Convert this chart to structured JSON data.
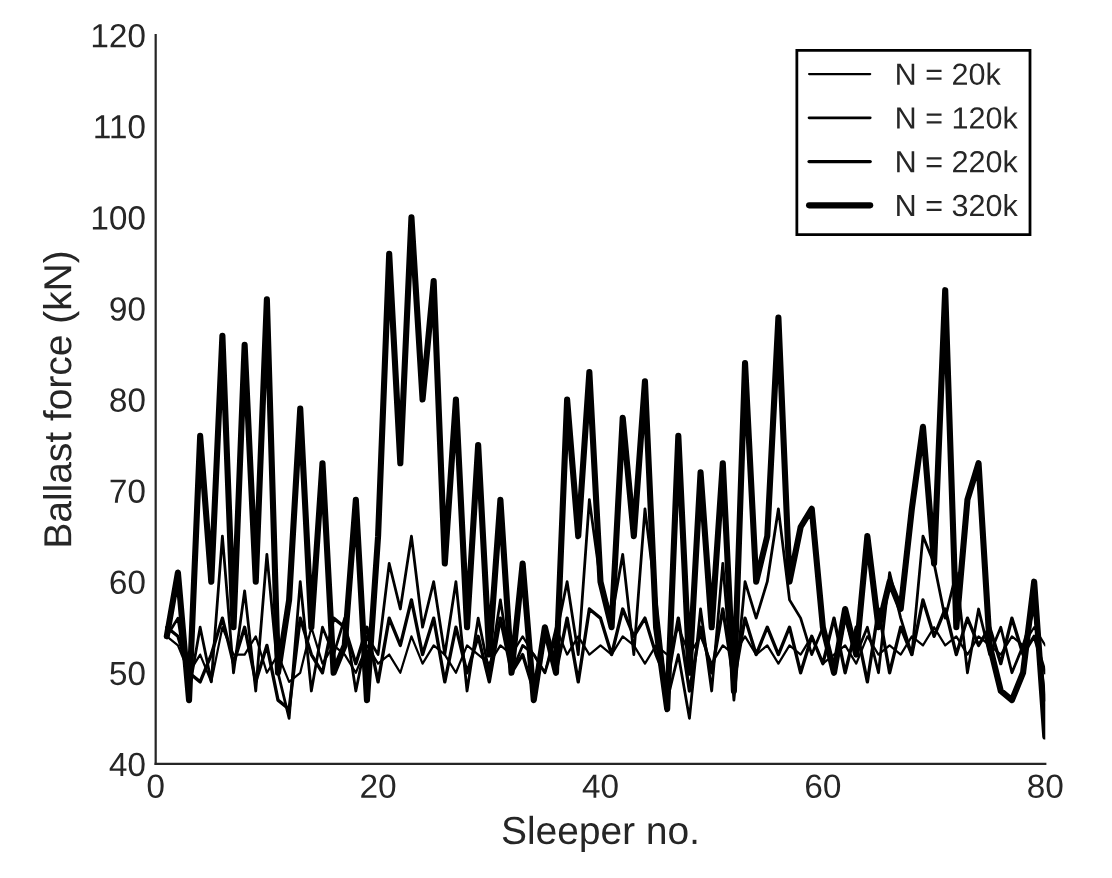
{
  "chart_data": {
    "type": "line",
    "xlabel": "Sleeper no.",
    "ylabel": "Ballast force (kN)",
    "x": [
      1,
      2,
      3,
      4,
      5,
      6,
      7,
      8,
      9,
      10,
      11,
      12,
      13,
      14,
      15,
      16,
      17,
      18,
      19,
      20,
      21,
      22,
      23,
      24,
      25,
      26,
      27,
      28,
      29,
      30,
      31,
      32,
      33,
      34,
      35,
      36,
      37,
      38,
      39,
      40,
      41,
      42,
      43,
      44,
      45,
      46,
      47,
      48,
      49,
      50,
      51,
      52,
      53,
      54,
      55,
      56,
      57,
      58,
      59,
      60,
      61,
      62,
      63,
      64,
      65,
      66,
      67,
      68,
      69,
      70,
      71,
      72,
      73,
      74,
      75,
      76,
      77,
      78,
      79,
      80
    ],
    "series": [
      {
        "name": "N = 20k",
        "color": "#000000",
        "values": [
          54,
          53,
          50,
          52,
          49,
          55,
          52,
          52,
          54,
          50,
          52,
          49,
          50,
          55,
          51,
          53,
          52,
          50,
          53,
          51,
          52,
          50,
          54,
          51,
          53,
          52,
          50,
          53,
          52,
          51,
          53,
          52,
          54,
          52,
          50,
          55,
          52,
          54,
          52,
          53,
          52,
          54,
          53,
          51,
          53,
          52,
          55,
          52,
          54,
          51,
          53,
          52,
          54,
          52,
          53,
          51,
          53,
          52,
          54,
          51,
          52,
          53,
          51,
          54,
          52,
          53,
          52,
          54,
          53,
          55,
          53,
          54,
          52,
          54,
          53,
          52,
          54,
          53,
          55,
          53
        ]
      },
      {
        "name": "N = 120k",
        "color": "#000000",
        "values": [
          54,
          56,
          48,
          55,
          49,
          65,
          50,
          59,
          48,
          63,
          50,
          45,
          60,
          48,
          55,
          52,
          56,
          48,
          54,
          52,
          62,
          57,
          65,
          55,
          60,
          52,
          60,
          48,
          56,
          50,
          58,
          50,
          53,
          52,
          50,
          54,
          60,
          52,
          69,
          60,
          56,
          63,
          52,
          68,
          58,
          47,
          52,
          45,
          57,
          48,
          62,
          47,
          60,
          56,
          60,
          68,
          58,
          56,
          52,
          55,
          50,
          56,
          52,
          55,
          50,
          61,
          56,
          52,
          65,
          62,
          56,
          61,
          50,
          57,
          52,
          55,
          50,
          53,
          57,
          47
        ]
      },
      {
        "name": "N = 220k",
        "color": "#000000",
        "values": [
          55,
          54,
          50,
          49,
          52,
          56,
          51,
          55,
          49,
          53,
          47,
          46,
          56,
          52,
          50,
          56,
          55,
          51,
          55,
          49,
          56,
          53,
          58,
          52,
          56,
          49,
          55,
          50,
          54,
          49,
          56,
          50,
          52,
          48,
          55,
          50,
          56,
          49,
          57,
          56,
          52,
          57,
          54,
          56,
          52,
          49,
          56,
          48,
          55,
          50,
          57,
          49,
          56,
          52,
          55,
          52,
          55,
          50,
          54,
          51,
          56,
          50,
          55,
          49,
          57,
          50,
          55,
          52,
          58,
          54,
          57,
          52,
          56,
          53,
          55,
          51,
          56,
          52,
          54,
          50
        ]
      },
      {
        "name": "N = 320k",
        "color": "#000000",
        "values": [
          54,
          61,
          47,
          76,
          60,
          87,
          55,
          86,
          60,
          91,
          50,
          58,
          79,
          55,
          73,
          50,
          53,
          69,
          47,
          65,
          96,
          73,
          100,
          80,
          93,
          62,
          80,
          55,
          75,
          52,
          69,
          50,
          62,
          47,
          55,
          50,
          80,
          65,
          83,
          60,
          55,
          78,
          65,
          82,
          55,
          46,
          76,
          50,
          72,
          55,
          73,
          48,
          84,
          60,
          65,
          89,
          60,
          66,
          68,
          55,
          50,
          57,
          52,
          65,
          55,
          60,
          57,
          68,
          77,
          62,
          92,
          55,
          69,
          73,
          53,
          48,
          47,
          50,
          60,
          43
        ]
      }
    ],
    "xlim": [
      0,
      80
    ],
    "xticks": [
      0,
      20,
      40,
      60,
      80
    ],
    "ylim": [
      40,
      120
    ],
    "yticks": [
      40,
      50,
      60,
      70,
      80,
      90,
      100,
      110,
      120
    ],
    "legend": "top right",
    "grid": false,
    "marker": "none",
    "line_style": "solid"
  }
}
